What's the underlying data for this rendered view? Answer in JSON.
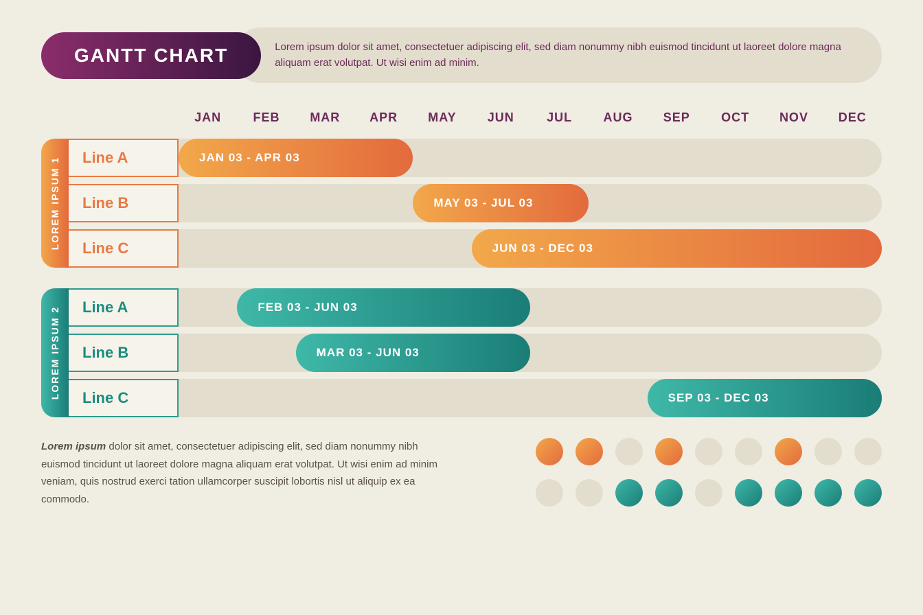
{
  "title": "GANTT CHART",
  "subtitle": "Lorem ipsum dolor sit amet, consectetuer adipiscing elit, sed diam nonummy nibh euismod tincidunt ut laoreet dolore magna aliquam erat volutpat. Ut wisi enim ad minim.",
  "months": [
    "JAN",
    "FEB",
    "MAR",
    "APR",
    "MAY",
    "JUN",
    "JUL",
    "AUG",
    "SEP",
    "OCT",
    "NOV",
    "DEC"
  ],
  "colors": {
    "background": "#f0ede3",
    "track": "#e3ddcd",
    "title_gradient_start": "#8b2d6b",
    "title_gradient_end": "#3a1640",
    "month_text": "#6b2a5a",
    "orange_start": "#f2a84a",
    "orange_end": "#e36a3d",
    "teal_start": "#3fb8a8",
    "teal_end": "#1a7d77",
    "neutral_dot": "#e3ddcd"
  },
  "groups": [
    {
      "label": "LOREM IPSUM 1",
      "color": "#e87a45",
      "gradient": "linear-gradient(90deg,#f2a84a 0%,#e36a3d 100%)",
      "text_color": "#e87a45",
      "rows": [
        {
          "label": "Line A",
          "bar_label": "JAN 03 - APR 03",
          "start": 0,
          "span": 4
        },
        {
          "label": "Line B",
          "bar_label": "MAY 03 - JUL 03",
          "start": 4,
          "span": 3
        },
        {
          "label": "Line C",
          "bar_label": "JUN 03 - DEC 03",
          "start": 5,
          "span": 7
        }
      ]
    },
    {
      "label": "LOREM IPSUM 2",
      "color": "#2a9d8f",
      "gradient": "linear-gradient(90deg,#3fb8a8 0%,#1a7d77 100%)",
      "text_color": "#1a8d80",
      "rows": [
        {
          "label": "Line A",
          "bar_label": "FEB 03 - JUN 03",
          "start": 1,
          "span": 5
        },
        {
          "label": "Line B",
          "bar_label": "MAR 03 - JUN 03",
          "start": 2,
          "span": 4
        },
        {
          "label": "Line C",
          "bar_label": "SEP 03 - DEC 03",
          "start": 8,
          "span": 4
        }
      ]
    }
  ],
  "footer_bold": "Lorem ipsum",
  "footer_text": " dolor sit amet, consectetuer adipiscing elit, sed diam nonummy nibh euismod tincidunt ut laoreet dolore magna aliquam erat volutpat. Ut wisi enim ad minim veniam, quis nostrud exerci tation ullamcorper suscipit lobortis nisl ut aliquip ex ea commodo.",
  "dot_rows": [
    [
      "orange",
      "orange",
      "neutral",
      "orange",
      "neutral",
      "neutral",
      "orange",
      "neutral",
      "neutral"
    ],
    [
      "neutral",
      "neutral",
      "teal",
      "teal",
      "neutral",
      "teal",
      "teal",
      "teal",
      "teal"
    ]
  ]
}
